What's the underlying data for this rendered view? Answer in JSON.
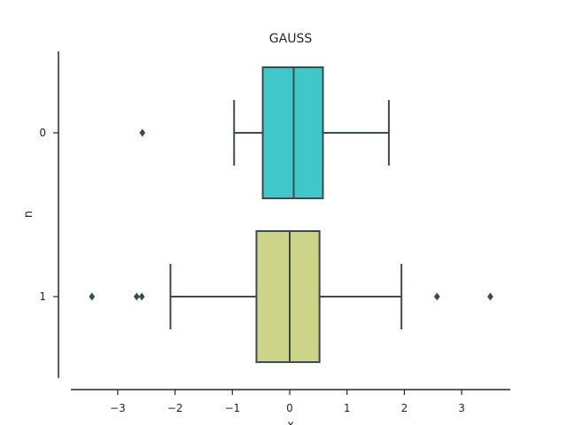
{
  "chart_data": {
    "type": "boxplot",
    "orientation": "horizontal",
    "title": "GAUSS",
    "xlabel": "x",
    "ylabel": "n",
    "xlim": [
      -3.85,
      3.85
    ],
    "x_ticks": [
      -3,
      -2,
      -1,
      0,
      1,
      2,
      3
    ],
    "x_tick_labels": [
      "−3",
      "−2",
      "−1",
      "0",
      "1",
      "2",
      "3"
    ],
    "grid": false,
    "categories": [
      "0",
      "1"
    ],
    "series": [
      {
        "category": "0",
        "color": "#40c8c8",
        "whisker_low": -0.97,
        "q1": -0.47,
        "median": 0.07,
        "q3": 0.58,
        "whisker_high": 1.73,
        "outliers": [
          -2.57
        ]
      },
      {
        "category": "1",
        "color": "#ccd488",
        "whisker_low": -2.08,
        "q1": -0.58,
        "median": 0.0,
        "q3": 0.52,
        "whisker_high": 1.95,
        "outliers": [
          -3.45,
          -2.67,
          -2.58,
          2.57,
          3.5
        ]
      }
    ],
    "line_color": "#3d4b50",
    "axis_color": "#262626"
  }
}
